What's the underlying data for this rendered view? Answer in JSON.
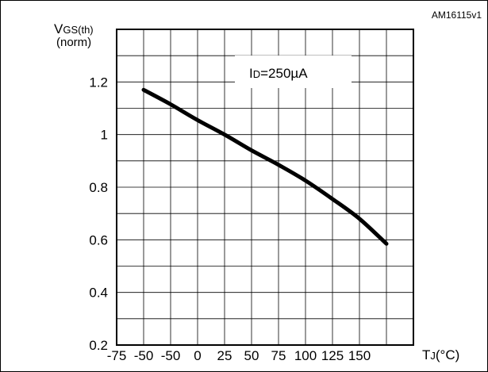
{
  "figure_id": "AM16115v1",
  "annotation": {
    "main": "I",
    "sub": "D",
    "rest": "=250µA"
  },
  "y_axis_label": {
    "main": "V",
    "sub": "GS(th)",
    "unit": "(norm)"
  },
  "x_axis_label": {
    "main": "T",
    "sub": "J",
    "rest": "(°C)"
  },
  "chart_data": {
    "type": "line",
    "x_ticks": [
      "-75",
      "-50",
      "-50",
      "0",
      "25",
      "50",
      "75",
      "100",
      "125",
      "150"
    ],
    "y_ticks": [
      "0.2",
      "0.4",
      "0.6",
      "0.8",
      "1",
      "1.2"
    ],
    "xlim": [
      -75,
      200
    ],
    "ylim": [
      0.2,
      1.4
    ],
    "grid": true,
    "series": [
      {
        "x": [
          -50,
          -25,
          0,
          25,
          50,
          75,
          100,
          125,
          150,
          175
        ],
        "y": [
          1.17,
          1.115,
          1.055,
          1.0,
          0.94,
          0.885,
          0.825,
          0.755,
          0.68,
          0.585
        ]
      }
    ]
  }
}
